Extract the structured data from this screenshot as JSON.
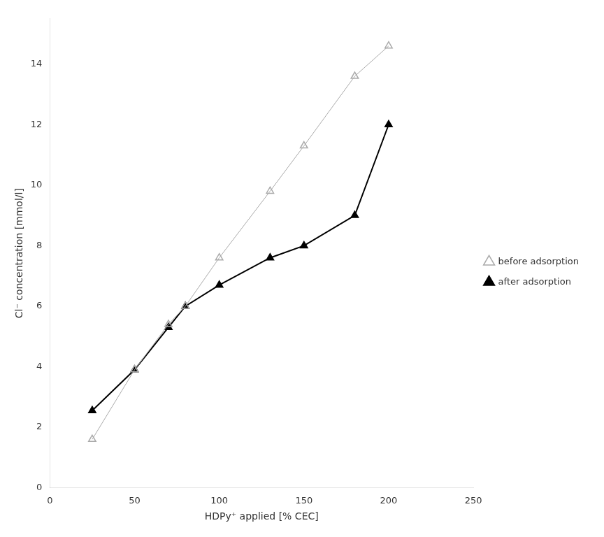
{
  "chart_data": {
    "type": "line",
    "x_label": "HDPy⁺ applied [% CEC]",
    "y_label": "Cl⁻ concentration [mmol/l]",
    "x": [
      25,
      50,
      70,
      80,
      100,
      130,
      150,
      180,
      200
    ],
    "series": [
      {
        "name": "before adsorption",
        "color": "#aaaaaa",
        "marker": "triangle-open",
        "values": [
          1.6,
          3.9,
          5.4,
          6.0,
          7.6,
          9.8,
          11.3,
          13.6,
          14.6
        ]
      },
      {
        "name": "after adsorption",
        "color": "#000000",
        "marker": "triangle",
        "values": [
          2.55,
          3.9,
          5.3,
          6.0,
          6.7,
          7.6,
          8.0,
          9.0,
          12.0
        ]
      }
    ],
    "xlim": [
      0,
      250
    ],
    "ylim": [
      0,
      15.5
    ],
    "xticks": [
      0,
      50,
      100,
      150,
      200,
      250
    ],
    "yticks": [
      0,
      2,
      4,
      6,
      8,
      10,
      12,
      14
    ],
    "grid": false,
    "legend": "right"
  }
}
